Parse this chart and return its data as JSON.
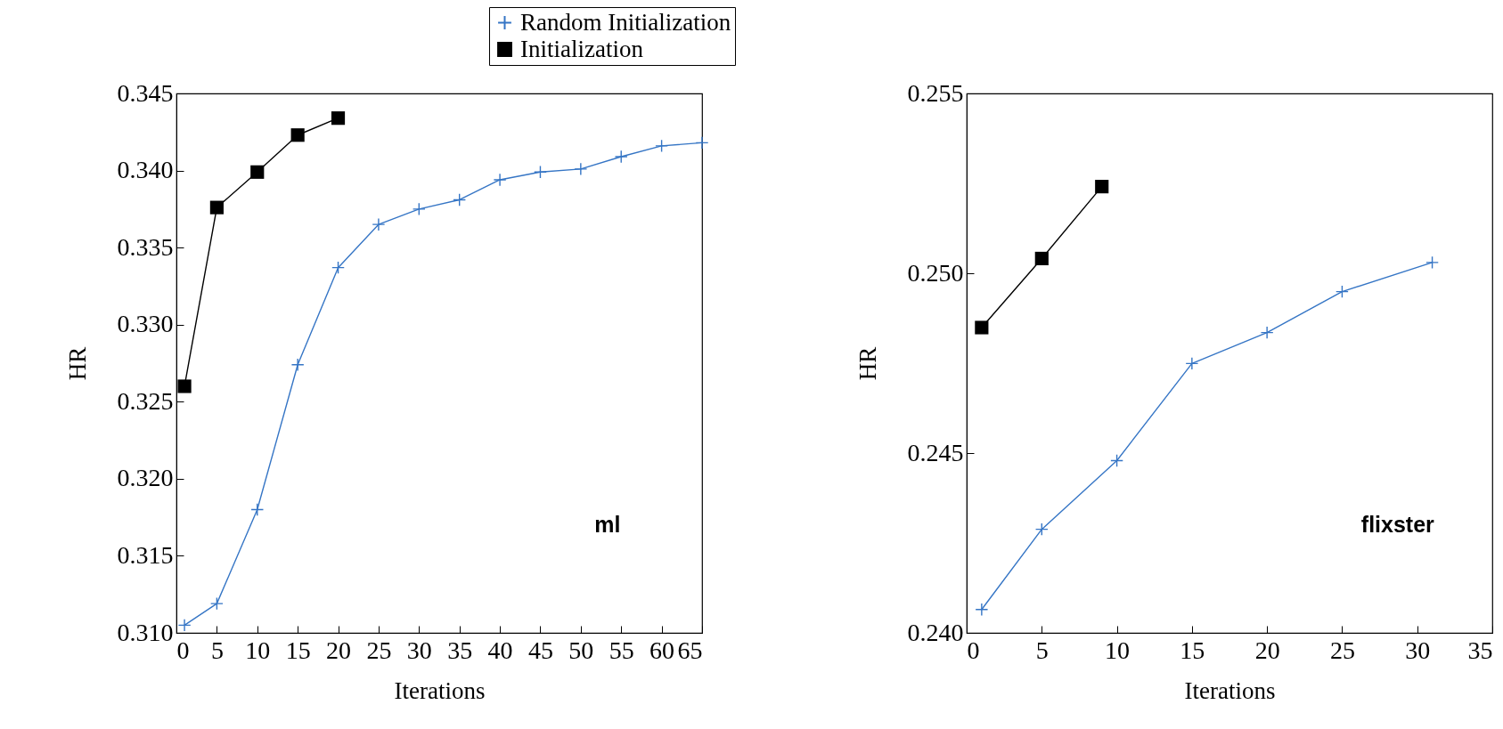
{
  "chart_data": [
    {
      "type": "line",
      "xlabel": "Iterations",
      "ylabel": "HR",
      "legend": "top",
      "annotations": [
        "ml"
      ],
      "xlim": [
        0,
        65
      ],
      "xticks": [
        0,
        5,
        10,
        15,
        20,
        25,
        30,
        35,
        40,
        45,
        50,
        55,
        60,
        65
      ],
      "ylim": [
        0.31,
        0.345
      ],
      "yticks": [
        {
          "value": 0.31,
          "label": "0.310"
        },
        {
          "value": 0.315,
          "label": "0.315"
        },
        {
          "value": 0.32,
          "label": "0.320"
        },
        {
          "value": 0.325,
          "label": "0.325"
        },
        {
          "value": 0.33,
          "label": "0.330"
        },
        {
          "value": 0.335,
          "label": "0.335"
        },
        {
          "value": 0.34,
          "label": "0.340"
        },
        {
          "value": 0.345,
          "label": "0.345"
        }
      ],
      "grid": false,
      "series": [
        {
          "name": "Random Initialization",
          "color": "#3575c5",
          "marker": "cross",
          "x": [
            1,
            5,
            10,
            15,
            20,
            25,
            30,
            35,
            40,
            45,
            50,
            55,
            60,
            65
          ],
          "values": [
            0.3105,
            0.3119,
            0.318,
            0.3274,
            0.3337,
            0.3365,
            0.3375,
            0.3381,
            0.3394,
            0.3399,
            0.3401,
            0.3409,
            0.3416,
            0.3418
          ]
        },
        {
          "name": "Initialization",
          "color": "#000000",
          "marker": "square",
          "x": [
            1,
            5,
            10,
            15,
            20
          ],
          "values": [
            0.326,
            0.3376,
            0.3399,
            0.3423,
            0.3434
          ]
        }
      ]
    },
    {
      "type": "line",
      "xlabel": "Iterations",
      "ylabel": "HR",
      "annotations": [
        "flixster"
      ],
      "xlim": [
        0,
        35
      ],
      "xticks": [
        0,
        5,
        10,
        15,
        20,
        25,
        30,
        35
      ],
      "ylim": [
        0.24,
        0.255
      ],
      "yticks": [
        {
          "value": 0.24,
          "label": "0.240"
        },
        {
          "value": 0.245,
          "label": "0.245"
        },
        {
          "value": 0.25,
          "label": "0.250"
        },
        {
          "value": 0.255,
          "label": "0.255"
        }
      ],
      "grid": false,
      "series": [
        {
          "color": "#3575c5",
          "marker": "cross",
          "x": [
            1,
            5,
            10,
            15,
            20,
            25,
            31
          ],
          "values": [
            0.24065,
            0.24288,
            0.24479,
            0.24749,
            0.24835,
            0.24949,
            0.2503
          ]
        },
        {
          "color": "#000000",
          "marker": "square",
          "x": [
            1,
            5,
            9
          ],
          "values": [
            0.24849,
            0.25041,
            0.25241
          ]
        }
      ]
    }
  ]
}
